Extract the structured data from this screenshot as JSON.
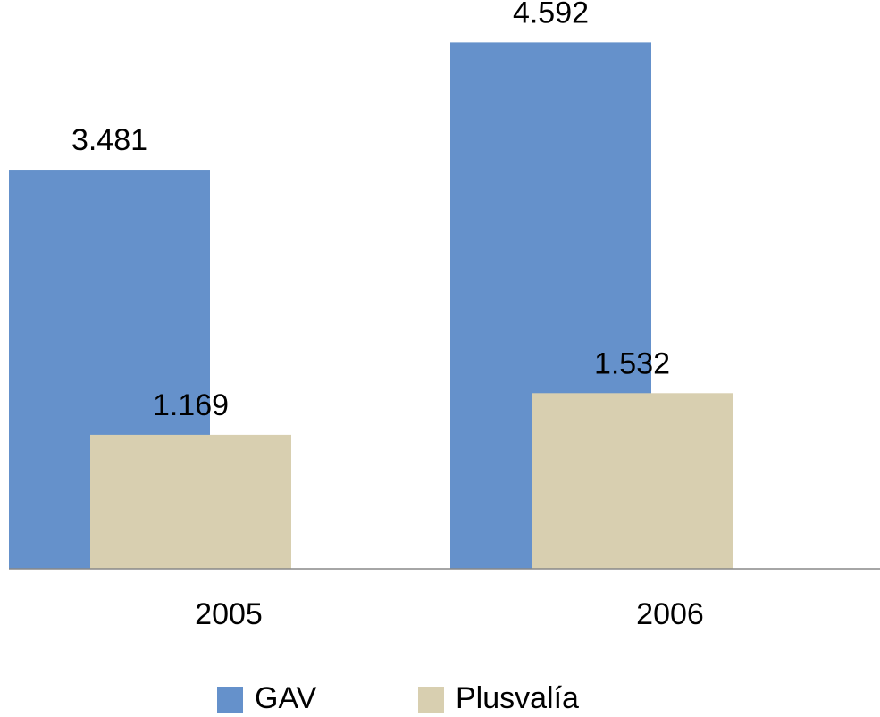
{
  "chart_data": {
    "type": "bar",
    "categories": [
      "2005",
      "2006"
    ],
    "series": [
      {
        "name": "GAV",
        "color": "#6591cb",
        "values": [
          3481,
          4592
        ],
        "value_labels": [
          "3.481",
          "4.592"
        ]
      },
      {
        "name": "Plusvalía",
        "color": "#d8cfb0",
        "values": [
          1169,
          1532
        ],
        "value_labels": [
          "1.169",
          "1.532"
        ]
      }
    ],
    "ylim": [
      0,
      5000
    ]
  }
}
